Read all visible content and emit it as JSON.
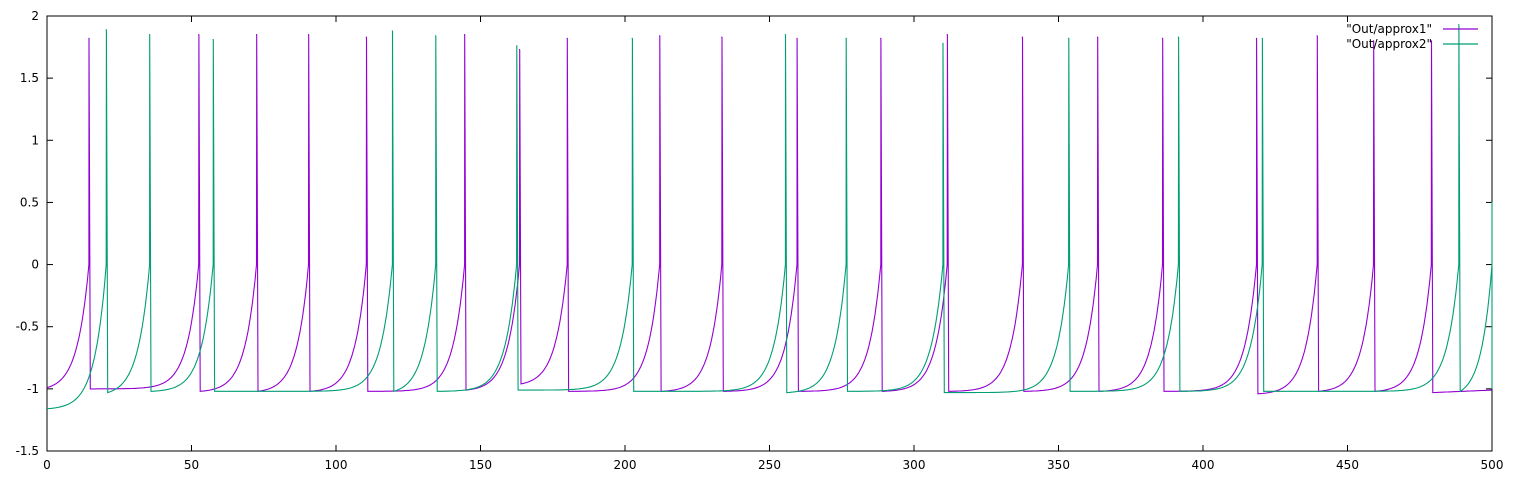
{
  "chart_data": {
    "type": "line",
    "title": "",
    "xlabel": "",
    "ylabel": "",
    "xlim": [
      0,
      500
    ],
    "ylim": [
      -1.5,
      2
    ],
    "xticks": [
      "0",
      "50",
      "100",
      "150",
      "200",
      "250",
      "300",
      "350",
      "400",
      "450",
      "500"
    ],
    "yticks": [
      "2",
      "1.5",
      "1",
      "0.5",
      "0",
      "-0.5",
      "-1",
      "-1.5"
    ],
    "grid": false,
    "legend_position": "top-right",
    "series": [
      {
        "name": "\"Out/approx1\"",
        "color": "#9400d3",
        "spikes": [
          {
            "x": 14.5,
            "peak": 1.82,
            "base": -1.0
          },
          {
            "x": 52.5,
            "peak": 1.85,
            "base": -1.02
          },
          {
            "x": 72.5,
            "peak": 1.85,
            "base": -1.02
          },
          {
            "x": 90.5,
            "peak": 1.85,
            "base": -1.02
          },
          {
            "x": 110.5,
            "peak": 1.83,
            "base": -1.02
          },
          {
            "x": 144.5,
            "peak": 1.85,
            "base": -1.01
          },
          {
            "x": 163.5,
            "peak": 1.73,
            "base": -0.96
          },
          {
            "x": 180.0,
            "peak": 1.82,
            "base": -1.02
          },
          {
            "x": 212.0,
            "peak": 1.84,
            "base": -1.02
          },
          {
            "x": 233.5,
            "peak": 1.83,
            "base": -1.02
          },
          {
            "x": 259.5,
            "peak": 1.82,
            "base": -1.02
          },
          {
            "x": 288.5,
            "peak": 1.82,
            "base": -1.02
          },
          {
            "x": 311.5,
            "peak": 1.85,
            "base": -1.02
          },
          {
            "x": 337.5,
            "peak": 1.83,
            "base": -1.02
          },
          {
            "x": 363.5,
            "peak": 1.83,
            "base": -1.02
          },
          {
            "x": 386.0,
            "peak": 1.82,
            "base": -1.02
          },
          {
            "x": 418.5,
            "peak": 1.82,
            "base": -1.04
          },
          {
            "x": 439.5,
            "peak": 1.84,
            "base": -1.02
          },
          {
            "x": 459.0,
            "peak": 1.8,
            "base": -1.02
          },
          {
            "x": 479.0,
            "peak": 1.8,
            "base": -1.03
          }
        ]
      },
      {
        "name": "\"Out/approx2\"",
        "color": "#009e73",
        "spikes": [
          {
            "x": 20.5,
            "peak": 1.89,
            "base": -1.03
          },
          {
            "x": 35.5,
            "peak": 1.85,
            "base": -1.02
          },
          {
            "x": 57.5,
            "peak": 1.81,
            "base": -1.02
          },
          {
            "x": 119.5,
            "peak": 1.88,
            "base": -1.02
          },
          {
            "x": 134.5,
            "peak": 1.84,
            "base": -1.02
          },
          {
            "x": 162.5,
            "peak": 1.76,
            "base": -1.01
          },
          {
            "x": 202.5,
            "peak": 1.82,
            "base": -1.02
          },
          {
            "x": 255.5,
            "peak": 1.85,
            "base": -1.03
          },
          {
            "x": 276.5,
            "peak": 1.82,
            "base": -1.02
          },
          {
            "x": 310.0,
            "peak": 1.78,
            "base": -1.03
          },
          {
            "x": 353.5,
            "peak": 1.82,
            "base": -1.02
          },
          {
            "x": 391.5,
            "peak": 1.83,
            "base": -1.02
          },
          {
            "x": 420.5,
            "peak": 1.82,
            "base": -1.02
          },
          {
            "x": 488.5,
            "peak": 1.93,
            "base": -1.02
          },
          {
            "x": 500.0,
            "peak": 0.5,
            "base": -1.0
          }
        ]
      }
    ]
  }
}
